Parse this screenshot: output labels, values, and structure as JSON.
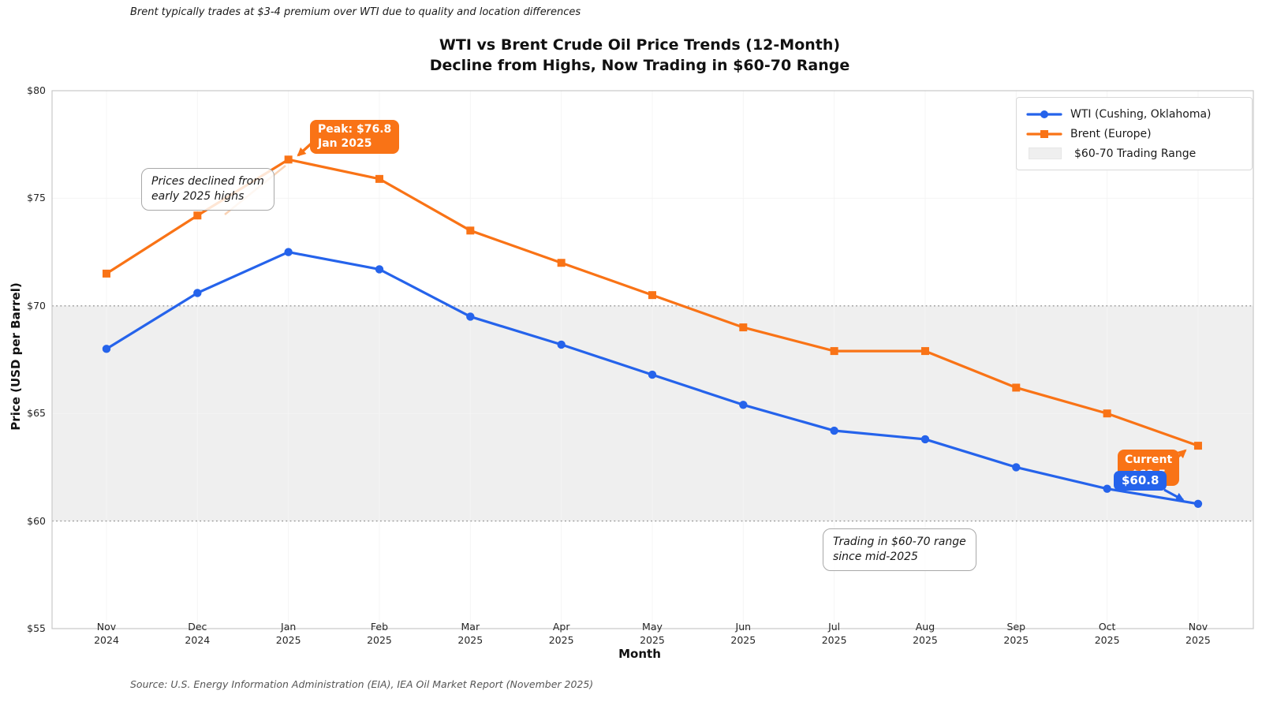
{
  "figure_note": "Brent typically trades at $3-4 premium over WTI due to quality and location differences",
  "source": "Source: U.S. Energy Information Administration (EIA), IEA Oil Market Report (November 2025)",
  "annotations": {
    "peak": {
      "line1": "Peak: $76.8",
      "line2": "Jan 2025"
    },
    "declined": {
      "line1": "Prices declined from",
      "line2": "early 2025 highs"
    },
    "current_brent": {
      "line1": "Current",
      "line2": "$63.5"
    },
    "current_wti": {
      "value": "$60.8"
    },
    "trading": {
      "line1": "Trading in $60-70 range",
      "line2": "since mid-2025"
    }
  },
  "chart_data": {
    "type": "line",
    "title": [
      "WTI vs Brent Crude Oil Price Trends (12-Month)",
      "Decline from Highs, Now Trading in $60-70 Range"
    ],
    "xlabel": "Month",
    "ylabel": "Price (USD per Barrel)",
    "ylim": [
      55,
      80
    ],
    "yticks": [
      55,
      60,
      65,
      70,
      75,
      80
    ],
    "ytick_labels": [
      "$55",
      "$60",
      "$65",
      "$70",
      "$75",
      "$80"
    ],
    "grid": true,
    "legend_position": "upper right",
    "categories": [
      "Nov 2024",
      "Dec 2024",
      "Jan 2025",
      "Feb 2025",
      "Mar 2025",
      "Apr 2025",
      "May 2025",
      "Jun 2025",
      "Jul 2025",
      "Aug 2025",
      "Sep 2025",
      "Oct 2025",
      "Nov 2025"
    ],
    "series": [
      {
        "name": "WTI (Cushing, Oklahoma)",
        "color": "#2563eb",
        "marker": "circle",
        "values": [
          68.0,
          70.6,
          72.5,
          71.7,
          69.5,
          68.2,
          66.8,
          65.4,
          64.2,
          63.8,
          62.5,
          61.5,
          60.8
        ]
      },
      {
        "name": "Brent (Europe)",
        "color": "#f97316",
        "marker": "square",
        "values": [
          71.5,
          74.2,
          76.8,
          75.9,
          73.5,
          72.0,
          70.5,
          69.0,
          67.9,
          67.9,
          66.2,
          65.0,
          63.5
        ]
      }
    ],
    "band": {
      "label": "$60-70 Trading Range",
      "from": 60,
      "to": 70,
      "color": "#efefef"
    }
  }
}
